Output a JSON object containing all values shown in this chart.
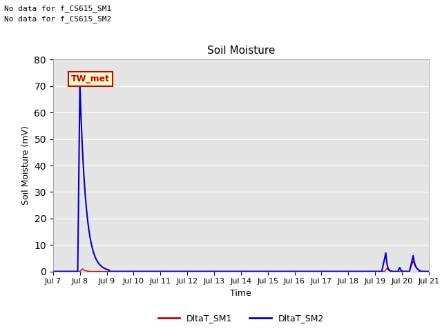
{
  "title": "Soil Moisture",
  "ylabel": "Soil Moisture (mV)",
  "xlabel": "Time",
  "no_data_text_1": "No data for f_CS615_SM1",
  "no_data_text_2": "No data for f_CS615_SM2",
  "legend_label": "TW_met",
  "legend_label_color": "#cc0000",
  "legend_bg": "#ffffcc",
  "legend_border": "#cc0000",
  "line1_color": "#cc0000",
  "line2_color": "#0000cc",
  "bg_color": "#e5e5e5",
  "ylim": [
    0,
    80
  ],
  "yticks": [
    0,
    10,
    20,
    30,
    40,
    50,
    60,
    70,
    80
  ],
  "tick_labels": [
    "Jul 7",
    "Jul 8",
    "Jul 9",
    "Jul 10",
    "Jul 11",
    "Jul 12",
    "Jul 13",
    "Jul 14",
    "Jul 15",
    "Jul 16",
    "Jul 17",
    "Jul 18",
    "Jul 19",
    "Jul 20",
    "Jul 21"
  ],
  "legend_line1_label": "DltaT_SM1",
  "legend_line2_label": "DltaT_SM2"
}
